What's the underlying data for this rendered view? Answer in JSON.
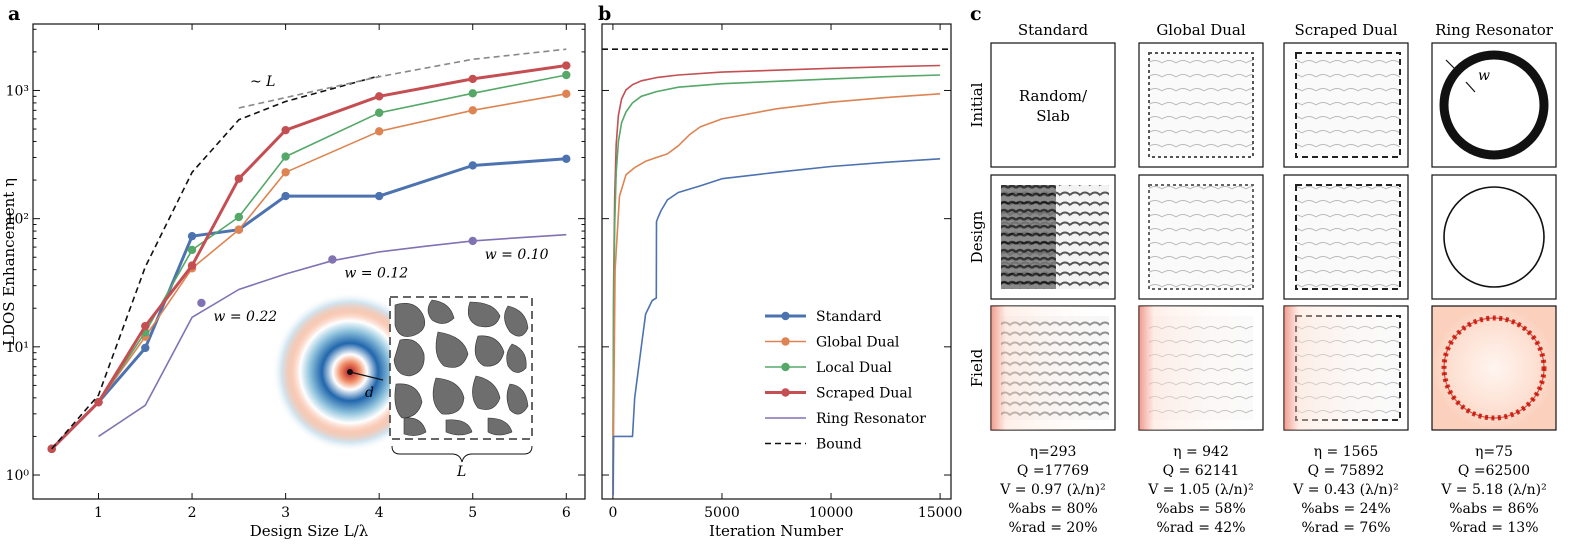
{
  "panels": {
    "a": "a",
    "b": "b",
    "c": "c"
  },
  "chart_data": [
    {
      "id": "a",
      "type": "line",
      "yscale": "log",
      "xlabel": "Design Size L/λ",
      "ylabel": "LDOS Enhancement η",
      "xlim": [
        0.3,
        6.2
      ],
      "ylim": [
        0.65,
        3300
      ],
      "xticks": [
        1,
        2,
        3,
        4,
        5,
        6
      ],
      "yticks": [
        {
          "v": 1,
          "label": "10⁰"
        },
        {
          "v": 10,
          "label": "10¹"
        },
        {
          "v": 100,
          "label": "10²"
        },
        {
          "v": 1000,
          "label": "10³"
        }
      ],
      "series": [
        {
          "name": "Standard",
          "color": "#4c72b0",
          "width": 3,
          "markers": true,
          "x": [
            0.5,
            1,
            1.5,
            2,
            2.5,
            3,
            4,
            5,
            6
          ],
          "values": [
            1.6,
            3.7,
            9.8,
            73,
            82,
            150,
            150,
            260,
            293
          ]
        },
        {
          "name": "Global Dual",
          "color": "#dd8452",
          "width": 1.6,
          "markers": true,
          "x": [
            0.5,
            1,
            1.5,
            2,
            2.5,
            3,
            4,
            5,
            6
          ],
          "values": [
            1.6,
            3.7,
            12,
            41,
            82,
            230,
            480,
            700,
            942
          ]
        },
        {
          "name": "Local Dual",
          "color": "#55a868",
          "width": 1.6,
          "markers": true,
          "x": [
            0.5,
            1,
            1.5,
            2,
            2.5,
            3,
            4,
            5,
            6
          ],
          "values": [
            1.6,
            3.7,
            13,
            57,
            103,
            305,
            670,
            950,
            1320
          ]
        },
        {
          "name": "Scraped Dual",
          "color": "#c44e52",
          "width": 3,
          "markers": true,
          "x": [
            0.5,
            1,
            1.5,
            2,
            2.5,
            3,
            4,
            5,
            6
          ],
          "values": [
            1.6,
            3.7,
            14.5,
            43,
            205,
            490,
            900,
            1230,
            1565
          ]
        },
        {
          "name": "Ring Resonator",
          "color": "#8172b3",
          "width": 1.6,
          "markers": false,
          "x": [
            1,
            1.5,
            2,
            2.5,
            3,
            3.5,
            4,
            4.5,
            5,
            5.5,
            6
          ],
          "values": [
            2,
            3.5,
            17,
            28,
            37,
            47,
            55,
            61,
            67,
            71,
            75
          ],
          "marked_points": [
            {
              "x": 2.1,
              "y": 22,
              "label": "w = 0.22"
            },
            {
              "x": 3.5,
              "y": 48,
              "label": "w = 0.12"
            },
            {
              "x": 5.0,
              "y": 67,
              "label": "w = 0.10"
            }
          ]
        },
        {
          "name": "Bound",
          "color": "#111111",
          "width": 1.6,
          "dash": "6,4",
          "markers": false,
          "x": [
            0.5,
            1,
            1.5,
            2,
            2.5,
            3,
            4
          ],
          "values": [
            1.6,
            4.2,
            42,
            230,
            590,
            820,
            1300
          ]
        },
        {
          "name": "~L",
          "color": "#888888",
          "width": 1.6,
          "dash": "6,4",
          "markers": false,
          "x": [
            2.5,
            4,
            5,
            6
          ],
          "values": [
            730,
            1280,
            1750,
            2100
          ]
        }
      ],
      "annotations": {
        "scaling": "~ L",
        "inset_d": "d",
        "inset_L": "L"
      }
    },
    {
      "id": "b",
      "type": "line",
      "yscale": "log",
      "xlabel": "Iteration Number",
      "xlim": [
        -500,
        15500
      ],
      "ylim": [
        0.65,
        3300
      ],
      "xticks": [
        0,
        5000,
        10000,
        15000
      ],
      "series": [
        {
          "name": "Scraped Dual",
          "color": "#c44e52",
          "width": 1.6,
          "x": [
            0,
            30,
            80,
            150,
            250,
            400,
            600,
            900,
            1300,
            2000,
            3000,
            5000,
            7500,
            10000,
            12500,
            15000
          ],
          "values": [
            0.7,
            30,
            150,
            380,
            640,
            860,
            1010,
            1110,
            1190,
            1260,
            1320,
            1390,
            1440,
            1490,
            1530,
            1565
          ]
        },
        {
          "name": "Local Dual",
          "color": "#55a868",
          "width": 1.6,
          "x": [
            0,
            30,
            80,
            150,
            250,
            400,
            600,
            900,
            1300,
            2000,
            3000,
            5000,
            7500,
            10000,
            12500,
            15000
          ],
          "values": [
            0.7,
            20,
            90,
            230,
            400,
            560,
            680,
            800,
            900,
            980,
            1060,
            1130,
            1180,
            1230,
            1280,
            1320
          ]
        },
        {
          "name": "Global Dual",
          "color": "#dd8452",
          "width": 1.6,
          "x": [
            0,
            100,
            300,
            600,
            1000,
            1500,
            2000,
            2500,
            3000,
            3500,
            4000,
            5000,
            7500,
            10000,
            12500,
            15000
          ],
          "values": [
            0.7,
            40,
            150,
            220,
            250,
            280,
            300,
            320,
            370,
            450,
            520,
            600,
            720,
            810,
            880,
            942
          ]
        },
        {
          "name": "Standard",
          "color": "#4c72b0",
          "width": 1.6,
          "x": [
            0,
            15,
            30,
            900,
            1000,
            1300,
            1500,
            1800,
            1990,
            2000,
            2050,
            2200,
            2500,
            3000,
            4000,
            5000,
            7500,
            10000,
            12500,
            15000
          ],
          "values": [
            0.7,
            0.7,
            2,
            2,
            4,
            10,
            18,
            23,
            24,
            95,
            100,
            115,
            140,
            160,
            180,
            205,
            230,
            255,
            275,
            293
          ]
        },
        {
          "name": "Bound",
          "color": "#111111",
          "width": 1.6,
          "dash": "6,4",
          "x": [
            -500,
            15500
          ],
          "values": [
            2100,
            2100
          ]
        }
      ]
    }
  ],
  "legend": [
    {
      "label": "Standard",
      "color": "#4c72b0",
      "marker": true,
      "thick": true
    },
    {
      "label": "Global Dual",
      "color": "#dd8452",
      "marker": true,
      "thick": false
    },
    {
      "label": "Local Dual",
      "color": "#55a868",
      "marker": true,
      "thick": false
    },
    {
      "label": "Scraped Dual",
      "color": "#c44e52",
      "marker": true,
      "thick": true
    },
    {
      "label": "Ring Resonator",
      "color": "#8172b3",
      "marker": false,
      "thick": false
    },
    {
      "label": "Bound",
      "color": "#111111",
      "marker": false,
      "thick": false,
      "dash": true
    }
  ],
  "grid": {
    "columns": [
      "Standard",
      "Global Dual",
      "Scraped Dual",
      "Ring Resonator"
    ],
    "rows": [
      "Initial",
      "Design",
      "Field"
    ],
    "standard_initial_label_1": "Random/",
    "standard_initial_label_2": "Slab",
    "ring_w_label": "w"
  },
  "stats": [
    {
      "eta": "η=293",
      "q": "Q =17769",
      "v": "V = 0.97 (λ/n)²",
      "abs": "%abs = 80%",
      "rad": "%rad = 20%"
    },
    {
      "eta": "η = 942",
      "q": "Q = 62141",
      "v": "V = 1.05 (λ/n)²",
      "abs": "%abs = 58%",
      "rad": "%rad = 42%"
    },
    {
      "eta": "η = 1565",
      "q": "Q = 75892",
      "v": "V = 0.43 (λ/n)²",
      "abs": "%abs = 24%",
      "rad": "%rad = 76%"
    },
    {
      "eta": "η=75",
      "q": "Q =62500",
      "v": "V = 5.18 (λ/n)²",
      "abs": "%abs = 86%",
      "rad": "%rad = 13%"
    }
  ]
}
